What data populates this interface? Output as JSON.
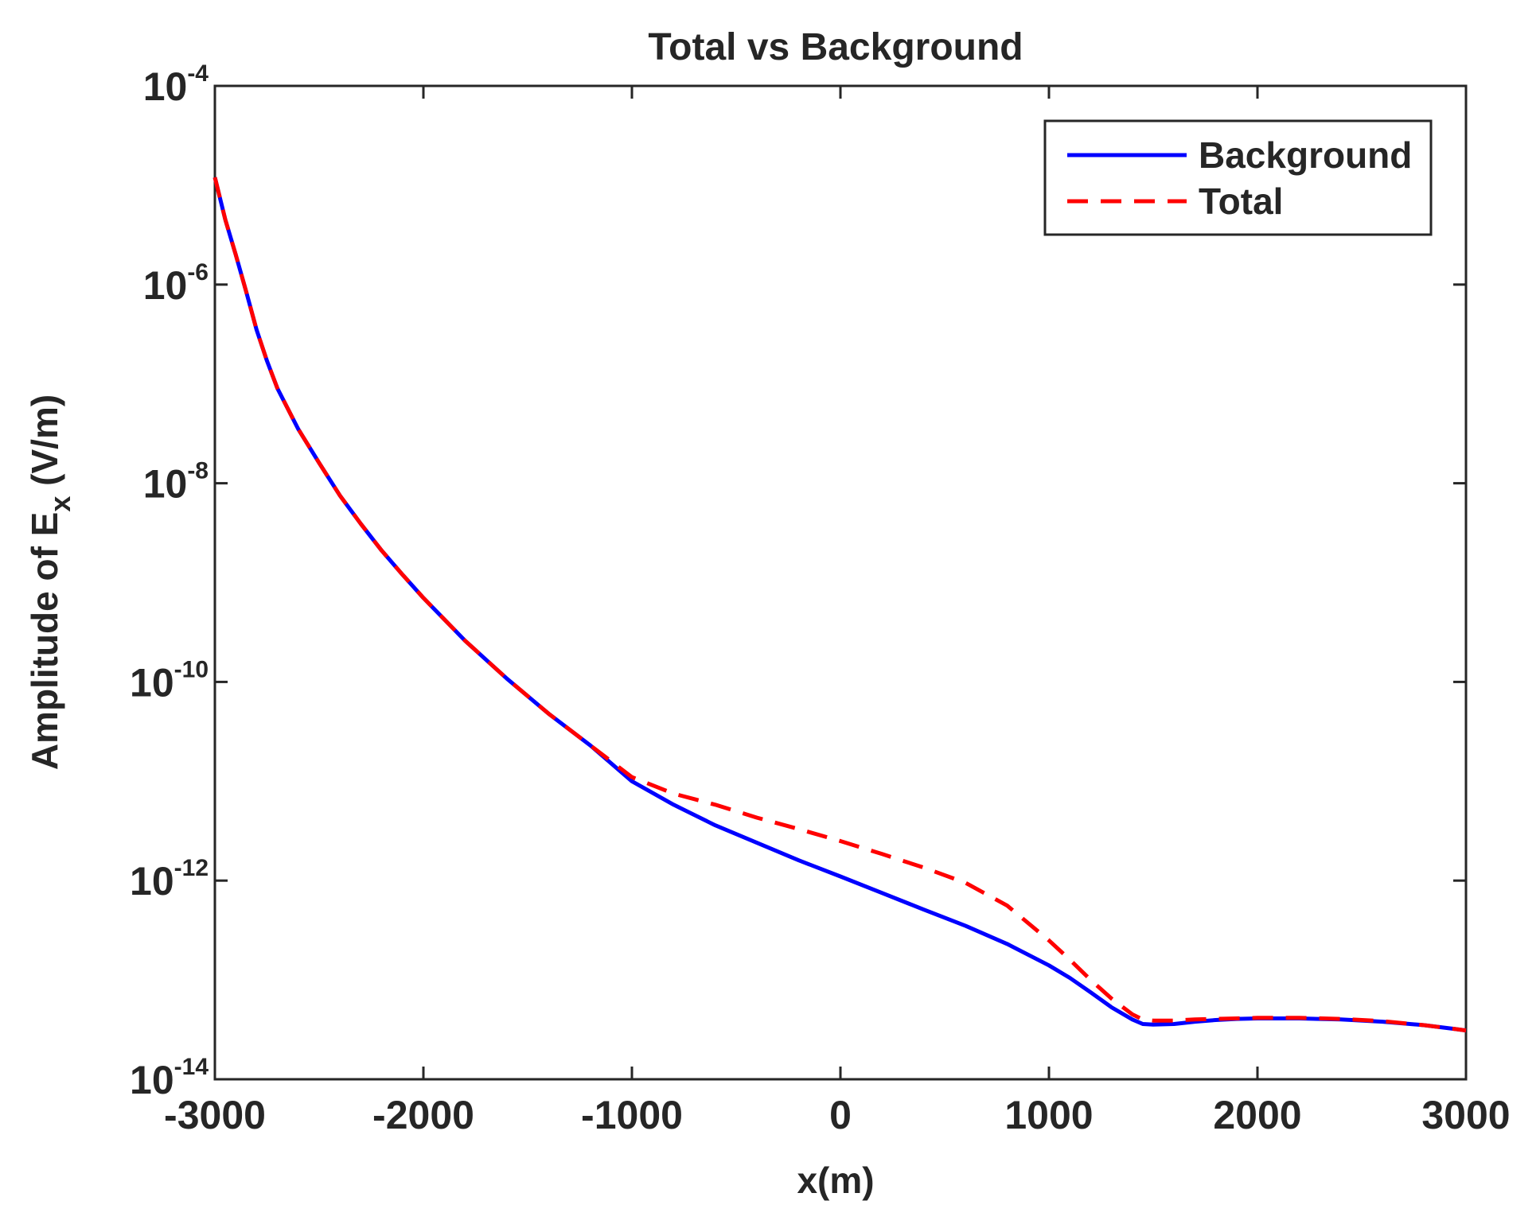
{
  "chart_data": {
    "type": "line",
    "title": "Total vs Background",
    "xlabel": "x(m)",
    "ylabel": {
      "prefix": "Amplitude of E",
      "subscript": "x",
      "suffix": " (V/m)"
    },
    "xlim": [
      -3000,
      3000
    ],
    "ylim": [
      1e-14,
      0.0001
    ],
    "yscale": "log",
    "xticks": [
      -3000,
      -2000,
      -1000,
      0,
      1000,
      2000,
      3000
    ],
    "xtick_labels": [
      "-3000",
      "-2000",
      "-1000",
      "0",
      "1000",
      "2000",
      "3000"
    ],
    "yticks": [
      {
        "value": 0.0001,
        "base": "10",
        "exp": "-4"
      },
      {
        "value": 1e-06,
        "base": "10",
        "exp": "-6"
      },
      {
        "value": 1e-08,
        "base": "10",
        "exp": "-8"
      },
      {
        "value": 1e-10,
        "base": "10",
        "exp": "-10"
      },
      {
        "value": 1e-12,
        "base": "10",
        "exp": "-12"
      },
      {
        "value": 1e-14,
        "base": "10",
        "exp": "-14"
      }
    ],
    "grid": false,
    "legend": {
      "position": "top-right"
    },
    "series": [
      {
        "name": "Background",
        "color": "#0000ff",
        "style": "solid",
        "x": [
          -3000,
          -2950,
          -2900,
          -2850,
          -2800,
          -2750,
          -2700,
          -2600,
          -2500,
          -2400,
          -2300,
          -2200,
          -2100,
          -2000,
          -1800,
          -1600,
          -1400,
          -1200,
          -1000,
          -800,
          -600,
          -400,
          -200,
          0,
          200,
          400,
          600,
          800,
          1000,
          1100,
          1200,
          1300,
          1400,
          1450,
          1500,
          1600,
          1700,
          1800,
          1900,
          2000,
          2200,
          2400,
          2600,
          2800,
          2950,
          3000
        ],
        "y": [
          1.2e-05,
          4.5e-06,
          2e-06,
          8.5e-07,
          3.5e-07,
          1.7e-07,
          9e-08,
          3.5e-08,
          1.6e-08,
          7.5e-09,
          3.9e-09,
          2.1e-09,
          1.2e-09,
          7e-10,
          2.6e-10,
          1.08e-10,
          4.8e-11,
          2.3e-11,
          1e-11,
          5.8e-12,
          3.6e-12,
          2.4e-12,
          1.6e-12,
          1.1e-12,
          7.5e-13,
          5.1e-13,
          3.5e-13,
          2.3e-13,
          1.4e-13,
          1.05e-13,
          7.5e-14,
          5.3e-14,
          4e-14,
          3.6e-14,
          3.55e-14,
          3.6e-14,
          3.8e-14,
          3.95e-14,
          4.05e-14,
          4.1e-14,
          4.1e-14,
          4e-14,
          3.8e-14,
          3.5e-14,
          3.2e-14,
          3.1e-14
        ]
      },
      {
        "name": "Total",
        "color": "#ff0000",
        "style": "dashed",
        "x": [
          -3000,
          -2950,
          -2900,
          -2850,
          -2800,
          -2750,
          -2700,
          -2600,
          -2500,
          -2400,
          -2300,
          -2200,
          -2100,
          -2000,
          -1800,
          -1600,
          -1400,
          -1200,
          -1000,
          -800,
          -700,
          -600,
          -400,
          -200,
          0,
          200,
          400,
          600,
          800,
          1000,
          1100,
          1200,
          1300,
          1400,
          1450,
          1500,
          1600,
          1700,
          1800,
          1900,
          2000,
          2200,
          2400,
          2600,
          2800,
          2950,
          3000
        ],
        "y": [
          1.2e-05,
          4.5e-06,
          2e-06,
          8.5e-07,
          3.5e-07,
          1.7e-07,
          9e-08,
          3.5e-08,
          1.6e-08,
          7.5e-09,
          3.9e-09,
          2.1e-09,
          1.2e-09,
          7e-10,
          2.6e-10,
          1.08e-10,
          4.8e-11,
          2.3e-11,
          1.1e-11,
          7.5e-12,
          6.6e-12,
          5.8e-12,
          4.3e-12,
          3.3e-12,
          2.5e-12,
          1.85e-12,
          1.35e-12,
          9.5e-13,
          5.6e-13,
          2.5e-13,
          1.6e-13,
          1e-13,
          6.5e-14,
          4.5e-14,
          4e-14,
          3.9e-14,
          3.9e-14,
          4e-14,
          4.05e-14,
          4.1e-14,
          4.15e-14,
          4.15e-14,
          4.05e-14,
          3.85e-14,
          3.5e-14,
          3.2e-14,
          3.1e-14
        ]
      }
    ]
  }
}
